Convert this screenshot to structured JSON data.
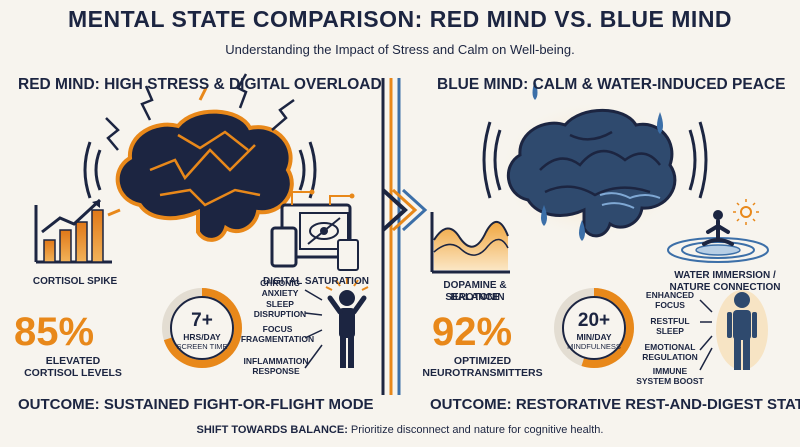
{
  "title": "MENTAL STATE COMPARISON: RED MIND VS. BLUE MIND",
  "subtitle": "Understanding the Impact of Stress and Calm on Well-being.",
  "red": {
    "heading": "RED MIND: HIGH STRESS & DIGITAL OVERLOAD",
    "cortisol_label": "CORTISOL SPIKE",
    "digital_label": "DIGITAL SATURATION",
    "stat_value": "85%",
    "stat_label_1": "ELEVATED",
    "stat_label_2": "CORTISOL LEVELS",
    "ring_value": "7+",
    "ring_unit_1": "HRS/DAY",
    "ring_unit_2": "SCREEN TIME",
    "ring_fraction": 0.7,
    "effects": [
      "CHRONIC ANXIETY",
      "SLEEP DISRUPTION",
      "FOCUS FRAGMENTATION",
      "INFLAMMATION RESPONSE"
    ],
    "outcome": "OUTCOME: SUSTAINED FIGHT-OR-FLIGHT MODE"
  },
  "blue": {
    "heading": "BLUE MIND: CALM & WATER-INDUCED PEACE",
    "dopamine_label_1": "DOPAMINE & SEROTONIN",
    "dopamine_label_2": "BALANCE",
    "water_label_1": "WATER IMMERSION /",
    "water_label_2": "NATURE CONNECTION",
    "stat_value": "92%",
    "stat_label_1": "OPTIMIZED",
    "stat_label_2": "NEUROTRANSMITTERS",
    "ring_value": "20+",
    "ring_unit_1": "MIN/DAY",
    "ring_unit_2": "MINDFULNESS",
    "ring_fraction": 0.55,
    "benefits": [
      "ENHANCED FOCUS",
      "RESTFUL SLEEP",
      "EMOTIONAL REGULATION",
      "IMMUNE SYSTEM BOOST"
    ],
    "outcome": "OUTCOME: RESTORATIVE REST-AND-DIGEST STATE"
  },
  "footer": {
    "bold": "SHIFT TOWARDS BALANCE:",
    "text": " Prioritize disconnect and nature for cognitive health."
  },
  "colors": {
    "navy": "#1c2541",
    "orange": "#e8881a",
    "blue": "#3c6fa8",
    "background": "#f7f4ee"
  }
}
